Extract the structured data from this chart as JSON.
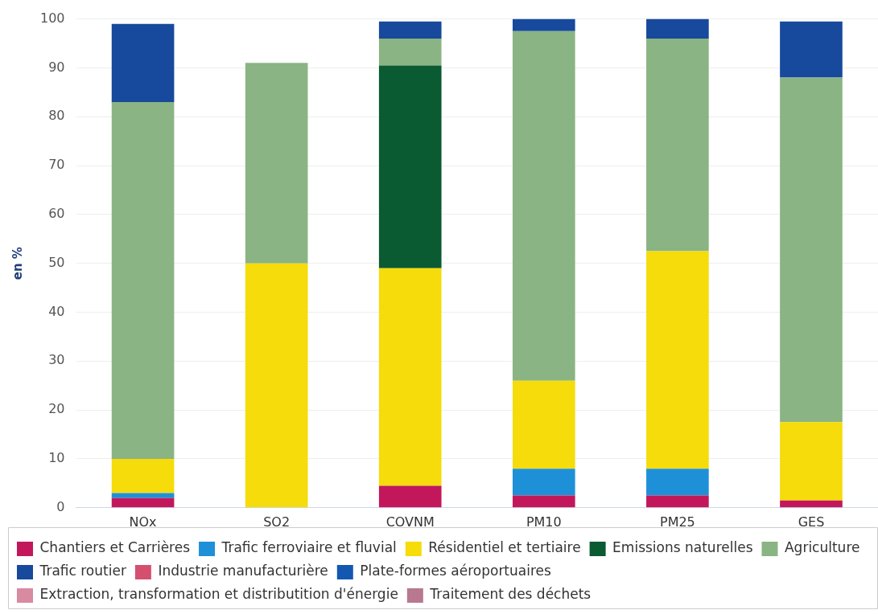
{
  "chart_data": {
    "type": "bar",
    "stacked": true,
    "ylabel": "en %",
    "categories": [
      "NOx",
      "SO2",
      "COVNM",
      "PM10",
      "PM25",
      "GES"
    ],
    "ylim": [
      0,
      100
    ],
    "yticks": [
      0,
      10,
      20,
      30,
      40,
      50,
      60,
      70,
      80,
      90,
      100
    ],
    "grid": "y",
    "legend": "bottom",
    "series": [
      {
        "name": "Chantiers et Carrières",
        "color": "#c2185b",
        "values": [
          2,
          0,
          4.5,
          2.5,
          2.5,
          1.5
        ]
      },
      {
        "name": "Trafic ferroviaire et fluvial",
        "color": "#1e90d8",
        "values": [
          1,
          0,
          0,
          5.5,
          5.5,
          0
        ]
      },
      {
        "name": "Résidentiel et tertiaire",
        "color": "#f5dc0a",
        "values": [
          7,
          50,
          44.5,
          18,
          44.5,
          16
        ]
      },
      {
        "name": "Emissions naturelles",
        "color": "#0a5a32",
        "values": [
          0,
          0,
          41.5,
          0,
          0,
          0
        ]
      },
      {
        "name": "Agriculture",
        "color": "#8ab483",
        "values": [
          73,
          41,
          5.5,
          71.5,
          43.5,
          70.5
        ]
      },
      {
        "name": "Trafic routier",
        "color": "#17499c",
        "values": [
          16,
          0,
          3.5,
          2.5,
          4,
          11.5
        ]
      },
      {
        "name": "Industrie manufacturière",
        "color": "#d4506e",
        "values": [
          0,
          0,
          0,
          0,
          0,
          0
        ]
      },
      {
        "name": "Plate-formes aéroportuaires",
        "color": "#1358b0",
        "values": [
          0,
          0,
          0,
          0,
          0,
          0
        ]
      },
      {
        "name": "Extraction, transformation et distributition d'énergie",
        "color": "#d88aa0",
        "values": [
          0,
          0,
          0,
          0,
          0,
          0
        ]
      },
      {
        "name": "Traitement des déchets",
        "color": "#b87890",
        "values": [
          0,
          0,
          0,
          0,
          0,
          0
        ]
      }
    ]
  }
}
